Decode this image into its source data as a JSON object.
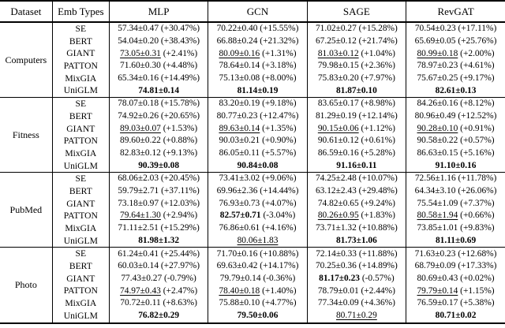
{
  "table": {
    "columns": [
      "Dataset",
      "Emb Types",
      "MLP",
      "GCN",
      "SAGE",
      "RevGAT"
    ],
    "sections": [
      {
        "dataset": "Computers",
        "rows": [
          {
            "emb": "SE",
            "cells": [
              {
                "v": "57.34±0.47",
                "p": "(+30.47%)",
                "s": "n"
              },
              {
                "v": "70.22±0.40",
                "p": "(+15.55%)",
                "s": "n"
              },
              {
                "v": "71.02±0.27",
                "p": "(+15.28%)",
                "s": "n"
              },
              {
                "v": "70.54±0.23",
                "p": "(+17.11%)",
                "s": "n"
              }
            ]
          },
          {
            "emb": "BERT",
            "cells": [
              {
                "v": "54.04±0.20",
                "p": "(+38.43%)",
                "s": "n"
              },
              {
                "v": "66.88±0.24",
                "p": "(+21.32%)",
                "s": "n"
              },
              {
                "v": "67.25±0.12",
                "p": "(+21.74%)",
                "s": "n"
              },
              {
                "v": "65.69±0.05",
                "p": "(+25.76%)",
                "s": "n"
              }
            ]
          },
          {
            "emb": "GIANT",
            "cells": [
              {
                "v": "73.05±0.31",
                "p": "(+2.41%)",
                "s": "u"
              },
              {
                "v": "80.09±0.16",
                "p": "(+1.31%)",
                "s": "u"
              },
              {
                "v": "81.03±0.12",
                "p": "(+1.04%)",
                "s": "u"
              },
              {
                "v": "80.99±0.18",
                "p": "(+2.00%)",
                "s": "u"
              }
            ]
          },
          {
            "emb": "PATTON",
            "cells": [
              {
                "v": "71.60±0.30",
                "p": "(+4.48%)",
                "s": "n"
              },
              {
                "v": "78.64±0.14",
                "p": "(+3.18%)",
                "s": "n"
              },
              {
                "v": "79.98±0.15",
                "p": "(+2.36%)",
                "s": "n"
              },
              {
                "v": "78.97±0.23",
                "p": "(+4.61%)",
                "s": "n"
              }
            ]
          },
          {
            "emb": "MixGIA",
            "cells": [
              {
                "v": "65.34±0.16",
                "p": "(+14.49%)",
                "s": "n"
              },
              {
                "v": "75.13±0.08",
                "p": "(+8.00%)",
                "s": "n"
              },
              {
                "v": "75.83±0.20",
                "p": "(+7.97%)",
                "s": "n"
              },
              {
                "v": "75.67±0.25",
                "p": "(+9.17%)",
                "s": "n"
              }
            ]
          },
          {
            "emb": "UniGLM",
            "cells": [
              {
                "v": "74.81±0.14",
                "p": "",
                "s": "b"
              },
              {
                "v": "81.14±0.19",
                "p": "",
                "s": "b"
              },
              {
                "v": "81.87±0.10",
                "p": "",
                "s": "b"
              },
              {
                "v": "82.61±0.13",
                "p": "",
                "s": "b"
              }
            ]
          }
        ]
      },
      {
        "dataset": "Fitness",
        "rows": [
          {
            "emb": "SE",
            "cells": [
              {
                "v": "78.07±0.18",
                "p": "(+15.78%)",
                "s": "n"
              },
              {
                "v": "83.20±0.19",
                "p": "(+9.18%)",
                "s": "n"
              },
              {
                "v": "83.65±0.17",
                "p": "(+8.98%)",
                "s": "n"
              },
              {
                "v": "84.26±0.16",
                "p": "(+8.12%)",
                "s": "n"
              }
            ]
          },
          {
            "emb": "BERT",
            "cells": [
              {
                "v": "74.92±0.26",
                "p": "(+20.65%)",
                "s": "n"
              },
              {
                "v": "80.77±0.23",
                "p": "(+12.47%)",
                "s": "n"
              },
              {
                "v": "81.29±0.19",
                "p": "(+12.14%)",
                "s": "n"
              },
              {
                "v": "80.96±0.49",
                "p": "(+12.52%)",
                "s": "n"
              }
            ]
          },
          {
            "emb": "GIANT",
            "cells": [
              {
                "v": "89.03±0.07",
                "p": "(+1.53%)",
                "s": "u"
              },
              {
                "v": "89.63±0.14",
                "p": "(+1.35%)",
                "s": "u"
              },
              {
                "v": "90.15±0.06",
                "p": "(+1.12%)",
                "s": "u"
              },
              {
                "v": "90.28±0.10",
                "p": "(+0.91%)",
                "s": "u"
              }
            ]
          },
          {
            "emb": "PATTON",
            "cells": [
              {
                "v": "89.60±0.22",
                "p": "(+0.88%)",
                "s": "n"
              },
              {
                "v": "90.03±0.21",
                "p": "(+0.90%)",
                "s": "n"
              },
              {
                "v": "90.61±0.12",
                "p": "(+0.61%)",
                "s": "n"
              },
              {
                "v": "90.58±0.22",
                "p": "(+0.57%)",
                "s": "n"
              }
            ]
          },
          {
            "emb": "MixGIA",
            "cells": [
              {
                "v": "82.83±0.12",
                "p": "(+9.13%)",
                "s": "n"
              },
              {
                "v": "86.05±0.11",
                "p": "(+5.57%)",
                "s": "n"
              },
              {
                "v": "86.59±0.16",
                "p": "(+5.28%)",
                "s": "n"
              },
              {
                "v": "86.63±0.15",
                "p": "(+5.16%)",
                "s": "n"
              }
            ]
          },
          {
            "emb": "UniGLM",
            "cells": [
              {
                "v": "90.39±0.08",
                "p": "",
                "s": "b"
              },
              {
                "v": "90.84±0.08",
                "p": "",
                "s": "b"
              },
              {
                "v": "91.16±0.11",
                "p": "",
                "s": "b"
              },
              {
                "v": "91.10±0.16",
                "p": "",
                "s": "b"
              }
            ]
          }
        ]
      },
      {
        "dataset": "PubMed",
        "rows": [
          {
            "emb": "SE",
            "cells": [
              {
                "v": "68.06±2.03",
                "p": "(+20.45%)",
                "s": "n"
              },
              {
                "v": "73.41±3.02",
                "p": "(+9.06%)",
                "s": "n"
              },
              {
                "v": "74.25±2.48",
                "p": "(+10.07%)",
                "s": "n"
              },
              {
                "v": "72.56±1.16",
                "p": "(+11.78%)",
                "s": "n"
              }
            ]
          },
          {
            "emb": "BERT",
            "cells": [
              {
                "v": "59.79±2.71",
                "p": "(+37.11%)",
                "s": "n"
              },
              {
                "v": "69.96±2.36",
                "p": "(+14.44%)",
                "s": "n"
              },
              {
                "v": "63.12±2.43",
                "p": "(+29.48%)",
                "s": "n"
              },
              {
                "v": "64.34±3.10",
                "p": "(+26.06%)",
                "s": "n"
              }
            ]
          },
          {
            "emb": "GIANT",
            "cells": [
              {
                "v": "73.18±0.97",
                "p": "(+12.03%)",
                "s": "n"
              },
              {
                "v": "76.93±0.73",
                "p": "(+4.07%)",
                "s": "n"
              },
              {
                "v": "74.82±0.65",
                "p": "(+9.24%)",
                "s": "n"
              },
              {
                "v": "75.54±1.09",
                "p": "(+7.37%)",
                "s": "n"
              }
            ]
          },
          {
            "emb": "PATTON",
            "cells": [
              {
                "v": "79.64±1.30",
                "p": "(+2.94%)",
                "s": "u"
              },
              {
                "v": "82.57±0.71",
                "p": "(-3.04%)",
                "s": "b"
              },
              {
                "v": "80.26±0.95",
                "p": "(+1.83%)",
                "s": "u"
              },
              {
                "v": "80.58±1.94",
                "p": "(+0.66%)",
                "s": "u"
              }
            ]
          },
          {
            "emb": "MixGIA",
            "cells": [
              {
                "v": "71.11±2.51",
                "p": "(+15.29%)",
                "s": "n"
              },
              {
                "v": "76.86±0.61",
                "p": "(+4.16%)",
                "s": "n"
              },
              {
                "v": "73.71±1.32",
                "p": "(+10.88%)",
                "s": "n"
              },
              {
                "v": "73.85±1.01",
                "p": "(+9.83%)",
                "s": "n"
              }
            ]
          },
          {
            "emb": "UniGLM",
            "cells": [
              {
                "v": "81.98±1.32",
                "p": "",
                "s": "b"
              },
              {
                "v": "80.06±1.83",
                "p": "",
                "s": "u"
              },
              {
                "v": "81.73±1.06",
                "p": "",
                "s": "b"
              },
              {
                "v": "81.11±0.69",
                "p": "",
                "s": "b"
              }
            ]
          }
        ]
      },
      {
        "dataset": "Photo",
        "rows": [
          {
            "emb": "SE",
            "cells": [
              {
                "v": "61.24±0.41",
                "p": "(+25.44%)",
                "s": "n"
              },
              {
                "v": "71.70±0.16",
                "p": "(+10.88%)",
                "s": "n"
              },
              {
                "v": "72.14±0.33",
                "p": "(+11.88%)",
                "s": "n"
              },
              {
                "v": "71.63±0.23",
                "p": "(+12.68%)",
                "s": "n"
              }
            ]
          },
          {
            "emb": "BERT",
            "cells": [
              {
                "v": "60.03±0.14",
                "p": "(+27.97%)",
                "s": "n"
              },
              {
                "v": "69.63±0.42",
                "p": "(+14.17%)",
                "s": "n"
              },
              {
                "v": "70.25±0.36",
                "p": "(+14.89%)",
                "s": "n"
              },
              {
                "v": "68.79±0.09",
                "p": "(+17.33%)",
                "s": "n"
              }
            ]
          },
          {
            "emb": "GIANT",
            "cells": [
              {
                "v": "77.43±0.27",
                "p": "(-0.79%)",
                "s": "n"
              },
              {
                "v": "79.79±0.14",
                "p": "(-0.36%)",
                "s": "n"
              },
              {
                "v": "81.17±0.23",
                "p": "(-0.57%)",
                "s": "b"
              },
              {
                "v": "80.69±0.43",
                "p": "(+0.02%)",
                "s": "n"
              }
            ]
          },
          {
            "emb": "PATTON",
            "cells": [
              {
                "v": "74.97±0.43",
                "p": "(+2.47%)",
                "s": "u"
              },
              {
                "v": "78.40±0.18",
                "p": "(+1.40%)",
                "s": "u"
              },
              {
                "v": "78.79±0.01",
                "p": "(+2.44%)",
                "s": "n"
              },
              {
                "v": "79.79±0.14",
                "p": "(+1.15%)",
                "s": "u"
              }
            ]
          },
          {
            "emb": "MixGIA",
            "cells": [
              {
                "v": "70.72±0.11",
                "p": "(+8.63%)",
                "s": "n"
              },
              {
                "v": "75.88±0.10",
                "p": "(+4.77%)",
                "s": "n"
              },
              {
                "v": "77.34±0.09",
                "p": "(+4.36%)",
                "s": "n"
              },
              {
                "v": "76.59±0.17",
                "p": "(+5.38%)",
                "s": "n"
              }
            ]
          },
          {
            "emb": "UniGLM",
            "cells": [
              {
                "v": "76.82±0.29",
                "p": "",
                "s": "b"
              },
              {
                "v": "79.50±0.06",
                "p": "",
                "s": "b"
              },
              {
                "v": "80.71±0.29",
                "p": "",
                "s": "u"
              },
              {
                "v": "80.71±0.02",
                "p": "",
                "s": "b"
              }
            ]
          }
        ]
      }
    ]
  }
}
